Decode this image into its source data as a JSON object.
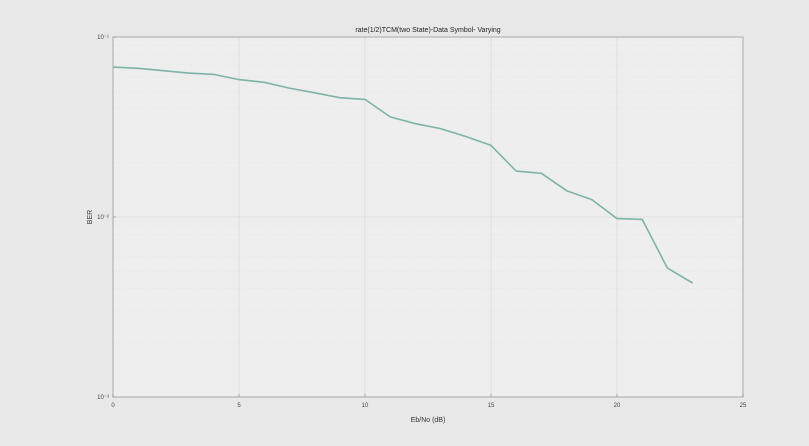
{
  "chart_data": {
    "type": "line",
    "title": "rate(1/2)TCM(two State)-Data Symbol- Varying",
    "xlabel": "Eb/No (dB)",
    "ylabel": "BER",
    "xlim": [
      0,
      25
    ],
    "ylim": [
      0.001,
      0.1
    ],
    "yscale": "log",
    "x_ticks": [
      0,
      5,
      10,
      15,
      20,
      25
    ],
    "x_tick_labels": [
      "0",
      "5",
      "10",
      "15",
      "20",
      "25"
    ],
    "y_ticks": [
      0.001,
      0.01,
      0.1
    ],
    "y_tick_labels": [
      "10⁻³",
      "10⁻²",
      "10⁻¹"
    ],
    "grid": true,
    "series": [
      {
        "color": "#7fb3a8",
        "x": [
          0,
          1,
          2,
          3,
          4,
          5,
          6,
          7,
          8,
          9,
          10,
          11,
          12,
          13,
          14,
          15,
          16,
          17,
          18,
          19,
          20,
          21,
          22,
          23
        ],
        "y": [
          0.068,
          0.067,
          0.065,
          0.063,
          0.062,
          0.058,
          0.056,
          0.052,
          0.049,
          0.046,
          0.045,
          0.036,
          0.033,
          0.031,
          0.028,
          0.025,
          0.018,
          0.0175,
          0.014,
          0.0125,
          0.0098,
          0.0097,
          0.0052,
          0.0043
        ]
      }
    ]
  }
}
